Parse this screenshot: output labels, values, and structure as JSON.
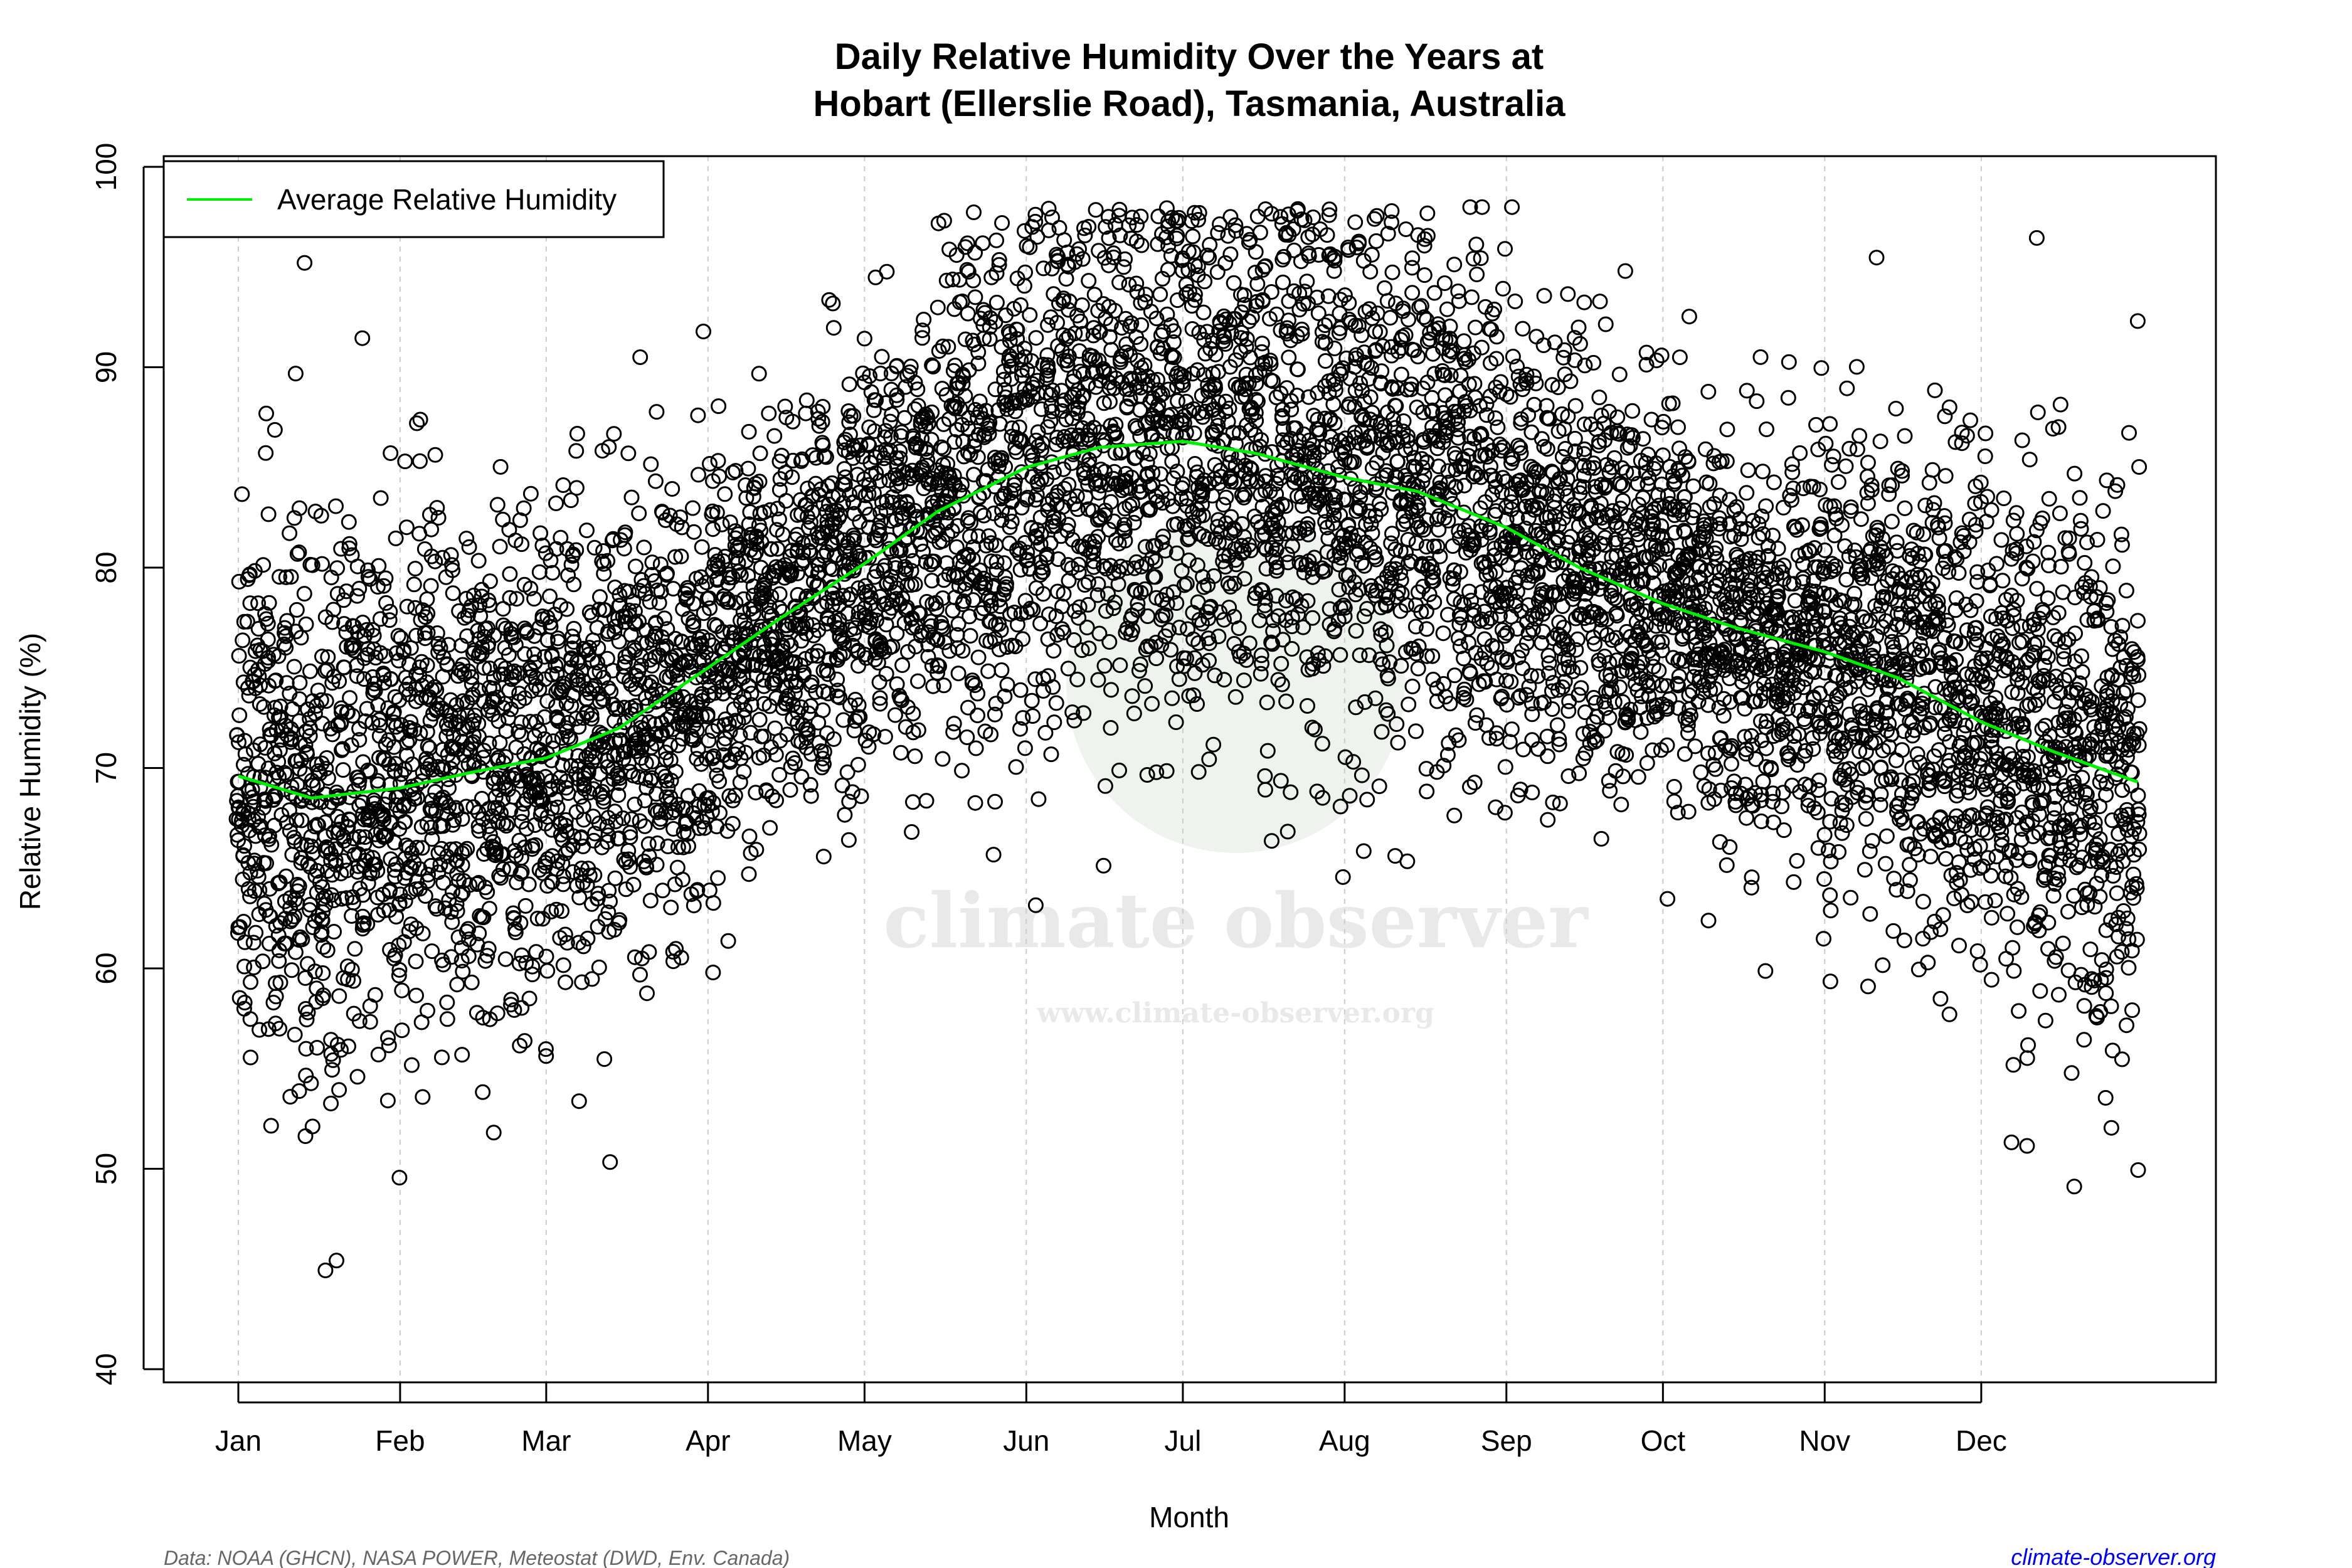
{
  "chart_data": {
    "type": "scatter",
    "title": [
      "Daily Relative Humidity Over the Years at",
      "Hobart (Ellerslie Road), Tasmania, Australia"
    ],
    "xlabel": "Month",
    "ylabel": "Relative Humidity  (%)",
    "ylim": [
      40,
      100
    ],
    "yticks": [
      "40",
      "50",
      "60",
      "70",
      "80",
      "90",
      "100"
    ],
    "xticks": [
      "Jan",
      "Feb",
      "Mar",
      "Apr",
      "May",
      "Jun",
      "Jul",
      "Aug",
      "Sep",
      "Oct",
      "Nov",
      "Dec"
    ],
    "xtick_days": [
      1,
      32,
      60,
      91,
      121,
      152,
      182,
      213,
      244,
      274,
      305,
      335
    ],
    "grid": "vertical dashed at month ticks",
    "legend": {
      "placement": "top-left",
      "entries": [
        {
          "label": "Average Relative Humidity",
          "color": "#00ee00"
        }
      ]
    },
    "average_series": {
      "name": "Average Relative Humidity",
      "day_of_year": [
        1,
        15,
        32,
        46,
        60,
        74,
        91,
        105,
        121,
        135,
        152,
        166,
        182,
        196,
        213,
        227,
        244,
        258,
        274,
        288,
        305,
        319,
        335,
        349,
        365
      ],
      "values": [
        69.6,
        68.5,
        69.0,
        69.8,
        70.5,
        72.0,
        75.0,
        77.5,
        80.2,
        82.8,
        85.0,
        86.0,
        86.3,
        85.7,
        84.5,
        83.8,
        82.0,
        80.0,
        78.2,
        77.0,
        75.8,
        74.5,
        72.3,
        70.8,
        69.3
      ]
    },
    "scatter_series": {
      "marker": "open circle",
      "color": "#000000",
      "description_range": [
        41.5,
        98
      ]
    },
    "colors": {
      "points": "#000000",
      "average": "#00ee00",
      "grid": "#cccccc"
    }
  },
  "watermark": {
    "name": "climate observer",
    "url": "www.climate-observer.org"
  },
  "footer": {
    "source": "Data: NOAA (GHCN), NASA POWER, Meteostat (DWD, Env. Canada)",
    "link": "climate-observer.org"
  }
}
